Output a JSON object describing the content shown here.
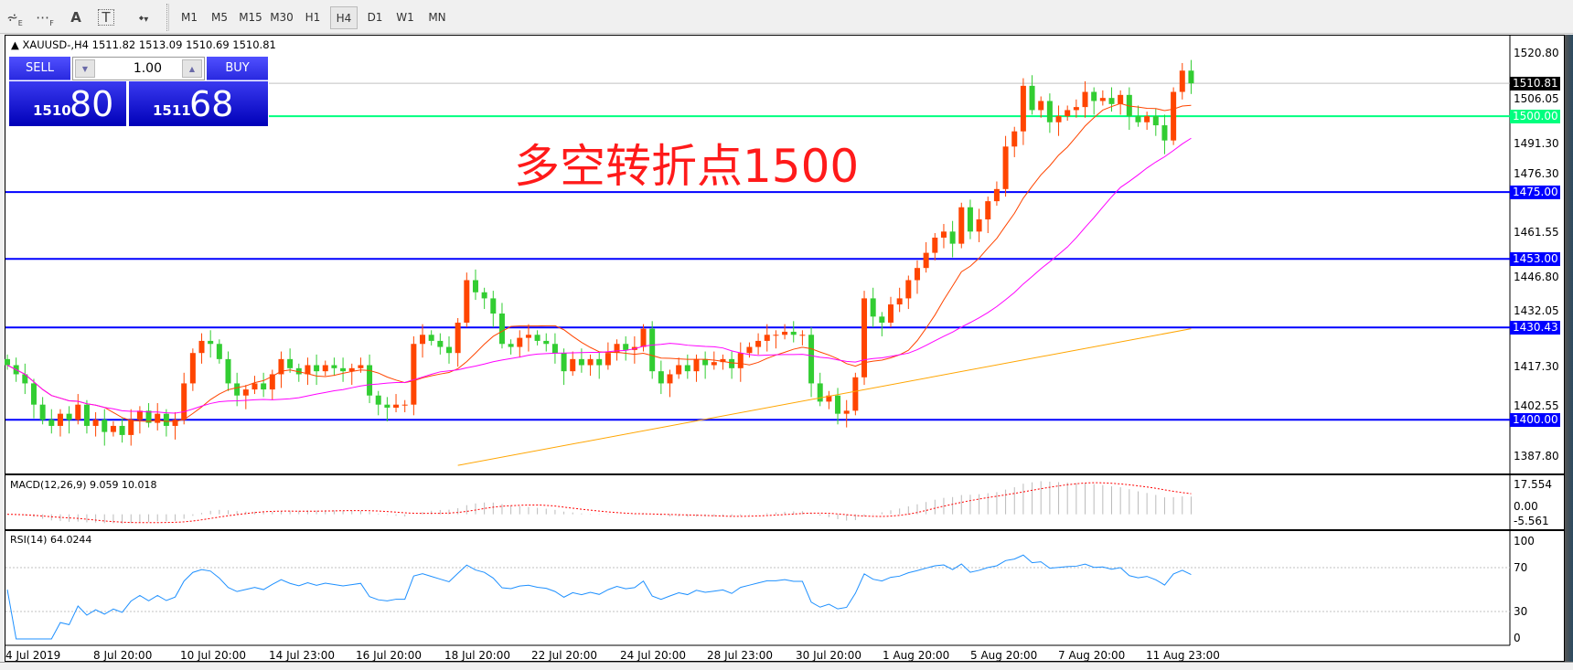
{
  "toolbar": {
    "icons": [
      "chart-e-icon",
      "grid-f-icon",
      "text-a-icon",
      "text-label-t-icon",
      "arrows-dropdown-icon"
    ],
    "icon_labels": [
      "E",
      "F",
      "A",
      "T",
      "▾"
    ],
    "timeframes": [
      "M1",
      "M5",
      "M15",
      "M30",
      "H1",
      "H4",
      "D1",
      "W1",
      "MN"
    ],
    "active": "H4"
  },
  "chart": {
    "symbol_line": "XAUUSD-,H4  1511.82 1513.09 1510.69 1510.81",
    "annotation": "多空转折点1500",
    "colors": {
      "bull": "#ff4500",
      "bear": "#32cd32",
      "level": "#0000ff",
      "pivot": "#00ff7f",
      "ma_fast": "#ff4500",
      "ma_mid": "#ff00ff",
      "ma_slow": "#ffa500",
      "rsi": "#1e90ff",
      "macd_signal": "#ff0000"
    }
  },
  "trade_panel": {
    "sell_label": "SELL",
    "buy_label": "BUY",
    "lot": "1.00",
    "sell_small": "1510",
    "sell_big": "80",
    "buy_small": "1511",
    "buy_big": "68"
  },
  "price_axis": {
    "ticks": [
      "1520.80",
      "1506.05",
      "1491.30",
      "1476.30",
      "1461.55",
      "1446.80",
      "1432.05",
      "1417.30",
      "1402.55",
      "1387.80"
    ],
    "bid_label": "1510.81",
    "pivot_label": "1500.00",
    "levels": [
      "1475.00",
      "1453.00",
      "1430.43",
      "1400.00"
    ]
  },
  "macd": {
    "title": "MACD(12,26,9) 9.059 10.018",
    "max_label": "17.554",
    "zero_label": "0.00",
    "min_label": "-5.561"
  },
  "rsi": {
    "title": "RSI(14) 64.0244",
    "ticks": [
      "100",
      "70",
      "30",
      "0"
    ]
  },
  "time_axis": [
    "4 Jul 2019",
    "8 Jul 20:00",
    "10 Jul 20:00",
    "14 Jul 23:00",
    "16 Jul 20:00",
    "18 Jul 20:00",
    "22 Jul 20:00",
    "24 Jul 20:00",
    "28 Jul 23:00",
    "30 Jul 20:00",
    "1 Aug 20:00",
    "5 Aug 20:00",
    "7 Aug 20:00",
    "11 Aug 23:00"
  ],
  "chart_data": {
    "type": "candlestick",
    "ylim": [
      1384,
      1524
    ],
    "levels": [
      1500,
      1475,
      1453,
      1430.43,
      1400
    ],
    "bid": 1510.81,
    "ma_slow_endpoints": [
      [
        51,
        1385
      ],
      [
        134,
        1430
      ]
    ],
    "closes": [
      1418,
      1415,
      1412,
      1405,
      1400,
      1398,
      1402,
      1400,
      1405,
      1398,
      1400,
      1396,
      1398,
      1395,
      1400,
      1403,
      1399,
      1402,
      1398,
      1400,
      1412,
      1422,
      1426,
      1425,
      1420,
      1412,
      1408,
      1410,
      1412,
      1410,
      1415,
      1420,
      1417,
      1415,
      1418,
      1416,
      1418,
      1417,
      1416,
      1417,
      1418,
      1408,
      1405,
      1404,
      1405,
      1405,
      1425,
      1428,
      1426,
      1424,
      1422,
      1432,
      1446,
      1442,
      1440,
      1435,
      1425,
      1424,
      1427,
      1428,
      1426,
      1425,
      1422,
      1416,
      1420,
      1418,
      1420,
      1418,
      1422,
      1425,
      1423,
      1424,
      1430,
      1416,
      1412,
      1415,
      1418,
      1416,
      1420,
      1418,
      1419,
      1420,
      1417,
      1422,
      1424,
      1426,
      1428,
      1428,
      1429,
      1428,
      1428,
      1412,
      1406,
      1408,
      1402,
      1403,
      1414,
      1440,
      1434,
      1432,
      1438,
      1440,
      1446,
      1450,
      1455,
      1460,
      1462,
      1458,
      1470,
      1462,
      1466,
      1472,
      1476,
      1490,
      1495,
      1510,
      1502,
      1505,
      1498,
      1500,
      1502,
      1503,
      1508,
      1505,
      1506,
      1504,
      1507,
      1500,
      1498,
      1500,
      1497,
      1492,
      1508,
      1515,
      1510.81
    ]
  }
}
